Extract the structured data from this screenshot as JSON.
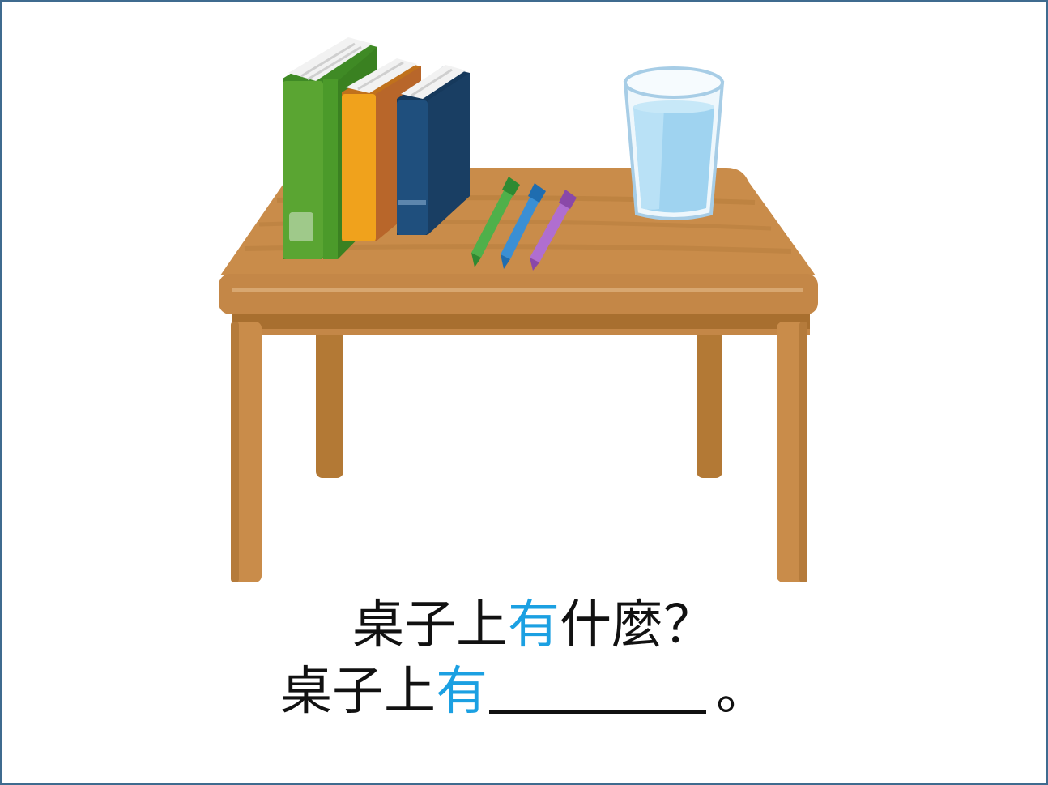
{
  "question": {
    "prefix": "桌子上",
    "highlight": "有",
    "suffix": "什麼？"
  },
  "answer": {
    "prefix": "桌子上",
    "highlight": "有",
    "end": "。"
  },
  "colors": {
    "highlight": "#1ba0e2",
    "text": "#111111",
    "frame": "#3f6b8f",
    "table_wood": "#c98c4a",
    "book_green": "#5aa532",
    "book_orange": "#f0a21c",
    "book_navy": "#1f4f7d",
    "water": "#9fd3f0"
  },
  "illustration": {
    "objects": [
      "table-icon",
      "green-book-icon",
      "orange-book-icon",
      "navy-book-icon",
      "green-pen-icon",
      "blue-pen-icon",
      "purple-pen-icon",
      "water-glass-icon"
    ]
  }
}
